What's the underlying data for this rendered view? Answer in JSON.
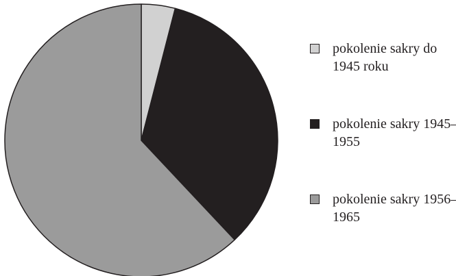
{
  "chart_data": {
    "type": "pie",
    "categories": [
      "pokolenie sakry do 1945 roku",
      "pokolenie sakry 1945–1955",
      "pokolenie sakry 1956–1965"
    ],
    "values": [
      4,
      34,
      62
    ],
    "colors": [
      "#d1d1d1",
      "#231f20",
      "#9b9b9b"
    ],
    "legend": "right"
  }
}
